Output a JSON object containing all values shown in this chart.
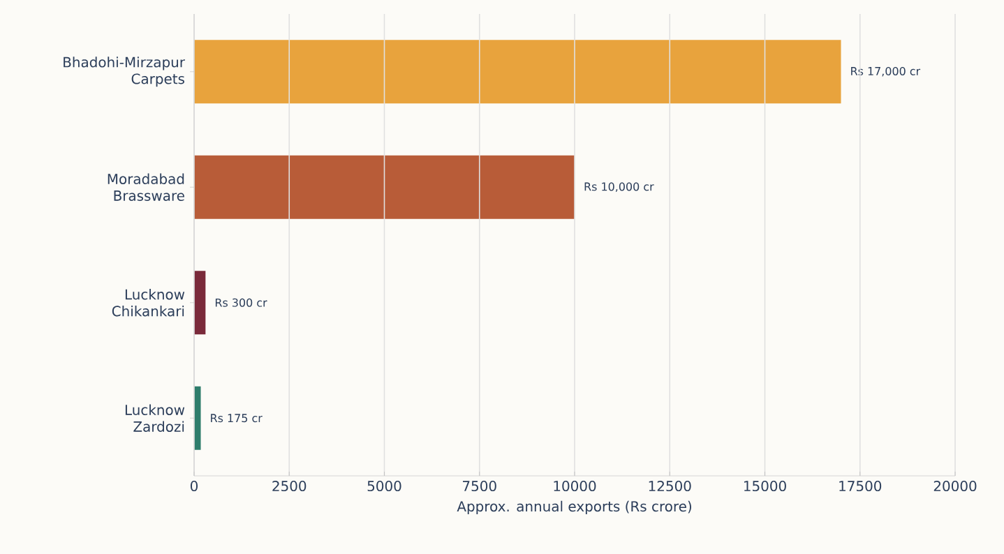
{
  "chart_data": {
    "type": "bar",
    "orientation": "horizontal",
    "xlabel": "Approx. annual exports (Rs crore)",
    "categories": [
      "Bhadohi-Mirzapur Carpets",
      "Moradabad Brassware",
      "Lucknow Chikankari",
      "Lucknow Zardozi"
    ],
    "values": [
      17000,
      10000,
      300,
      175
    ],
    "colors": [
      "#e8a33d",
      "#b85c38",
      "#7a2a3a",
      "#2e7d6b"
    ],
    "value_labels": [
      "Rs 17,000 cr",
      "Rs 10,000 cr",
      "Rs 300 cr",
      "Rs 175 cr"
    ],
    "xlim": [
      0,
      20000
    ],
    "xticks": [
      0,
      2500,
      5000,
      7500,
      10000,
      12500,
      15000,
      17500,
      20000
    ],
    "grid": "x"
  }
}
